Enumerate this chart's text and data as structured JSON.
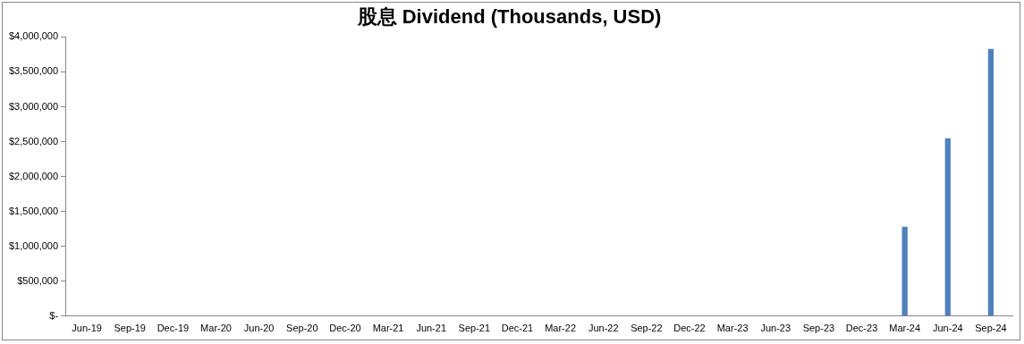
{
  "chart_data": {
    "type": "bar",
    "title": "股息 Dividend (Thousands, USD)",
    "categories": [
      "Jun-19",
      "Sep-19",
      "Dec-19",
      "Mar-20",
      "Jun-20",
      "Sep-20",
      "Dec-20",
      "Mar-21",
      "Jun-21",
      "Sep-21",
      "Dec-21",
      "Mar-22",
      "Jun-22",
      "Sep-22",
      "Dec-22",
      "Mar-23",
      "Jun-23",
      "Sep-23",
      "Dec-23",
      "Mar-24",
      "Jun-24",
      "Sep-24"
    ],
    "values": [
      0,
      0,
      0,
      0,
      0,
      0,
      0,
      0,
      0,
      0,
      0,
      0,
      0,
      0,
      0,
      0,
      0,
      0,
      0,
      1280000,
      2550000,
      3830000
    ],
    "color": "#4f81bd",
    "ylim": [
      0,
      4000000
    ],
    "yticks": [
      {
        "value": 0,
        "label": "$-"
      },
      {
        "value": 500000,
        "label": "$500,000"
      },
      {
        "value": 1000000,
        "label": "$1,000,000"
      },
      {
        "value": 1500000,
        "label": "$1,500,000"
      },
      {
        "value": 2000000,
        "label": "$2,000,000"
      },
      {
        "value": 2500000,
        "label": "$2,500,000"
      },
      {
        "value": 3000000,
        "label": "$3,000,000"
      },
      {
        "value": 3500000,
        "label": "$3,500,000"
      },
      {
        "value": 4000000,
        "label": "$4,000,000"
      }
    ],
    "grid": false,
    "legend": false
  }
}
